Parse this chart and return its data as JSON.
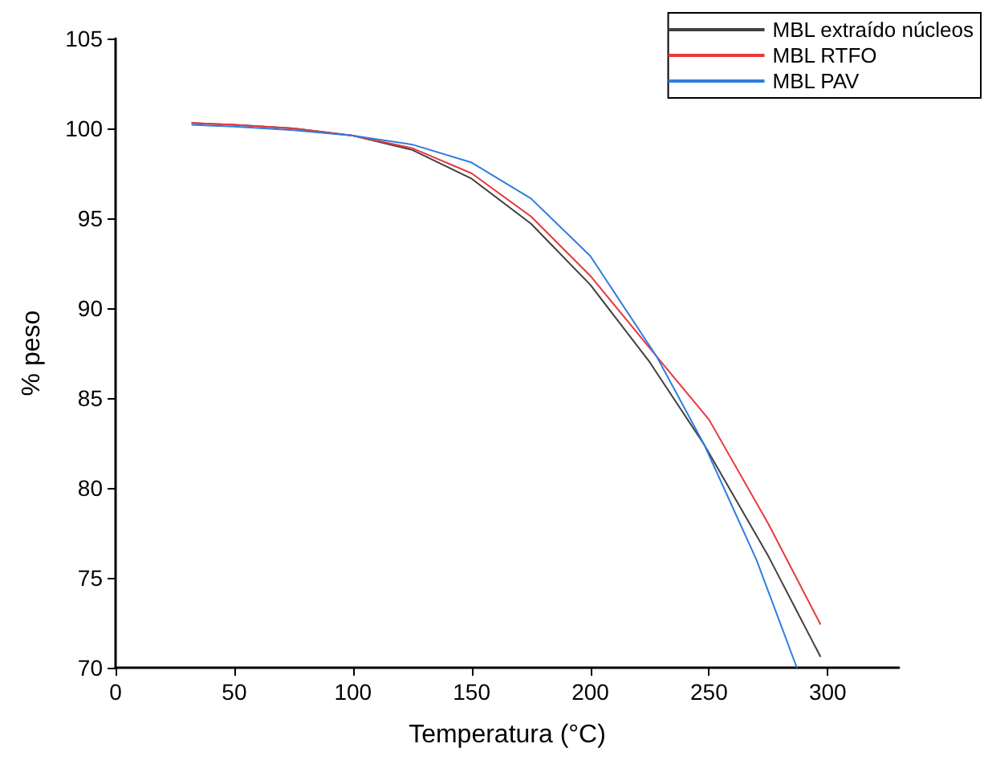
{
  "chart_data": {
    "type": "line",
    "xlabel": "Temperatura (°C)",
    "ylabel": "% peso",
    "xlim": [
      0,
      330
    ],
    "xticks": [
      0,
      50,
      100,
      150,
      200,
      250,
      300
    ],
    "ylim": [
      70,
      105
    ],
    "yticks": [
      70,
      75,
      80,
      85,
      90,
      95,
      100,
      105
    ],
    "grid": false,
    "legend": "top right",
    "marker": "none",
    "line_style": "solid",
    "series": [
      {
        "name": "MBL extraído núcleos",
        "color": "#404040",
        "x": [
          32,
          50,
          75,
          100,
          125,
          150,
          175,
          200,
          225,
          248,
          275,
          297
        ],
        "values": [
          100.3,
          100.2,
          100.0,
          99.6,
          98.8,
          97.2,
          94.7,
          91.3,
          87.0,
          82.4,
          76.2,
          70.6
        ]
      },
      {
        "name": "MBL RTFO",
        "color": "#e8383d",
        "x": [
          32,
          50,
          75,
          100,
          125,
          150,
          175,
          200,
          228,
          250,
          275,
          297
        ],
        "values": [
          100.3,
          100.2,
          100.0,
          99.6,
          98.9,
          97.5,
          95.1,
          91.8,
          87.3,
          83.8,
          78.0,
          72.4
        ]
      },
      {
        "name": "MBL PAV",
        "color": "#2f7de1",
        "x": [
          32,
          50,
          75,
          100,
          125,
          150,
          175,
          200,
          228,
          248,
          270,
          287
        ],
        "values": [
          100.2,
          100.1,
          99.9,
          99.6,
          99.1,
          98.1,
          96.1,
          92.9,
          87.3,
          82.4,
          76.0,
          70.0
        ]
      }
    ]
  }
}
